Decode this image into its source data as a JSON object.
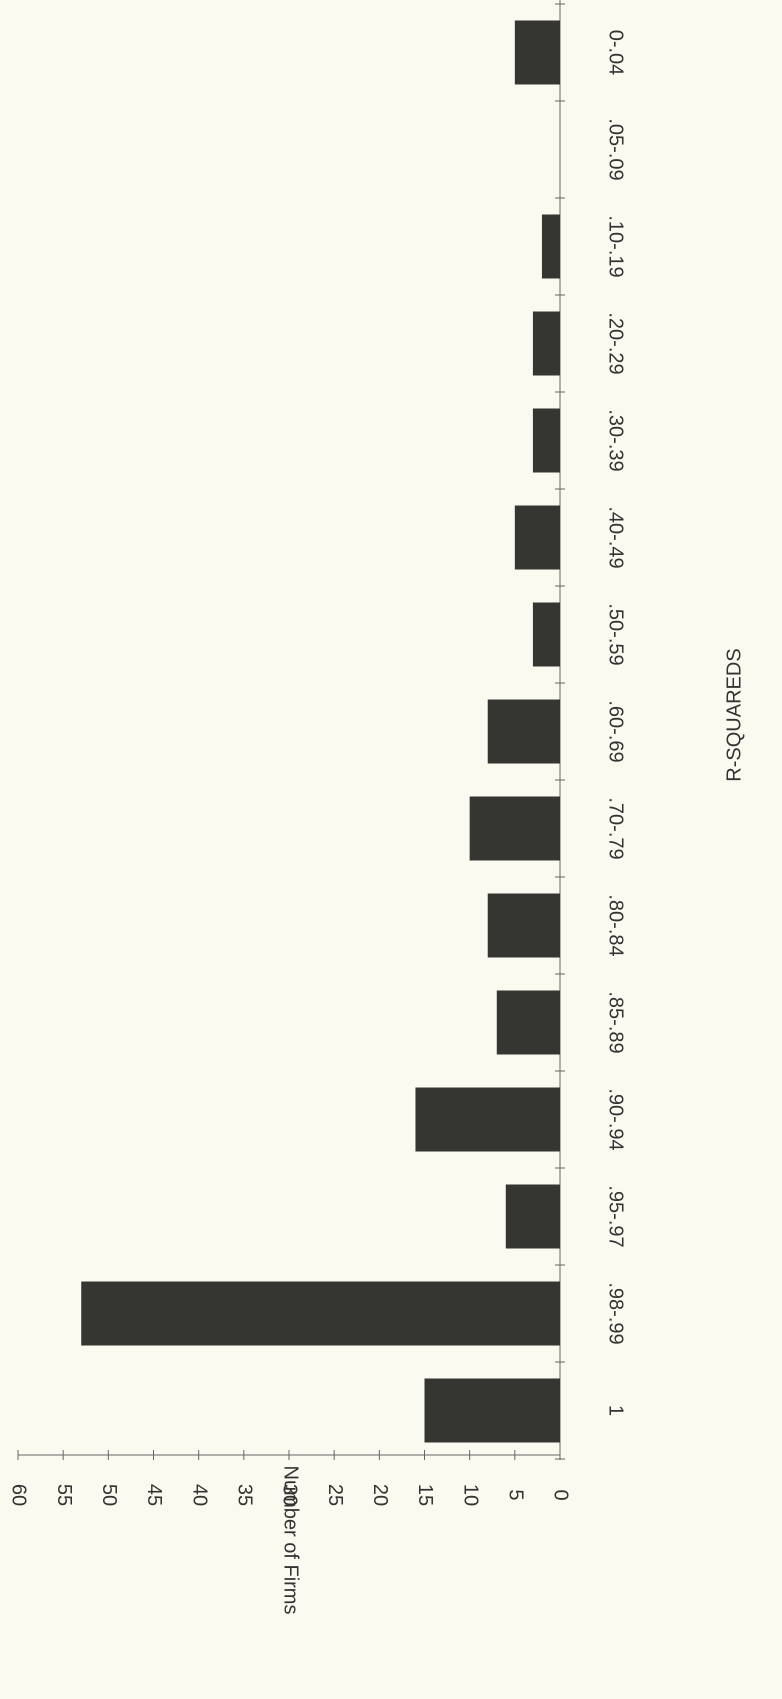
{
  "chart_data": {
    "type": "bar",
    "orientation": "horizontal",
    "x_label": "R-SQUAREDS",
    "y_label": "Number of Firms",
    "categories": [
      "0-.04",
      ".05-.09",
      ".10-.19",
      ".20-.29",
      ".30-.39",
      ".40-.49",
      ".50-.59",
      ".60-.69",
      ".70-.79",
      ".80-.84",
      ".85-.89",
      ".90-.94",
      ".95-.97",
      ".98-.99",
      "1"
    ],
    "values": [
      5,
      0,
      2,
      3,
      3,
      5,
      3,
      8,
      10,
      8,
      7,
      16,
      6,
      53,
      15
    ],
    "color": "#353532",
    "ylim": [
      0,
      60
    ],
    "yticks": [
      0,
      5,
      10,
      15,
      20,
      25,
      30,
      35,
      40,
      45,
      50,
      55,
      60
    ]
  }
}
